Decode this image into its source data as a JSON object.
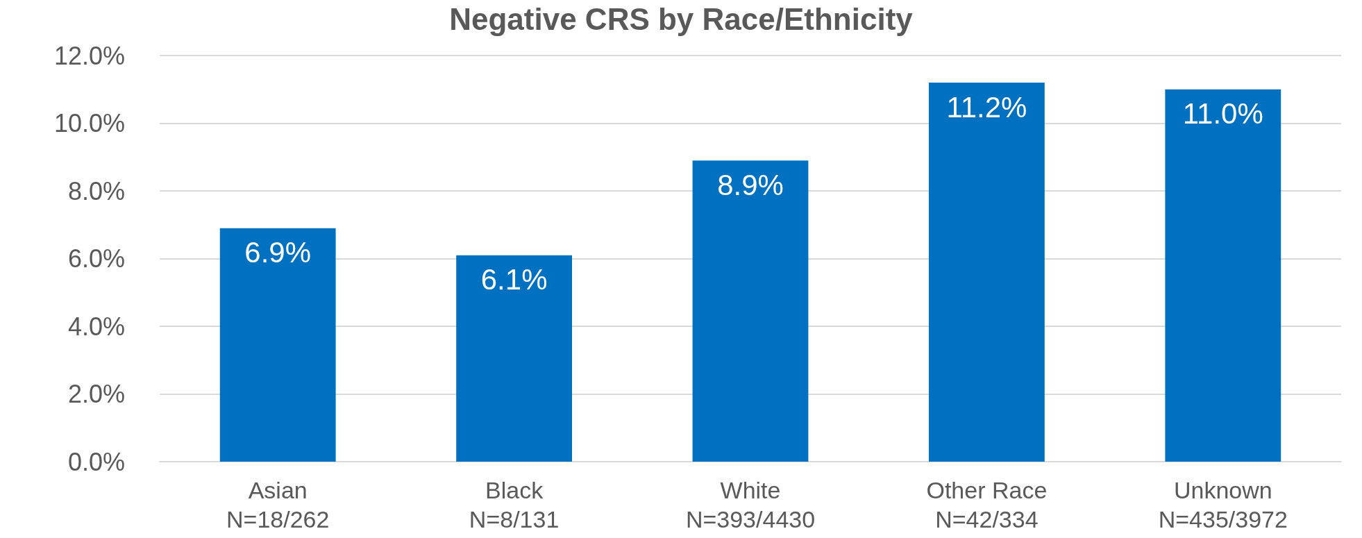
{
  "chart_data": {
    "type": "bar",
    "title": "Negative CRS by Race/Ethnicity",
    "categories": [
      "Asian\nN=18/262",
      "Black\nN=8/131",
      "White\nN=393/4430",
      "Other Race\nN=42/334",
      "Unknown\nN=435/3972"
    ],
    "values": [
      6.9,
      6.1,
      8.9,
      11.2,
      11.0
    ],
    "color": "#0070c0",
    "ylim": [
      0,
      12
    ],
    "yticks": [
      {
        "value": 0,
        "label": "0.0%"
      },
      {
        "value": 2,
        "label": "2.0%"
      },
      {
        "value": 4,
        "label": "4.0%"
      },
      {
        "value": 6,
        "label": "6.0%"
      },
      {
        "value": 8,
        "label": "8.0%"
      },
      {
        "value": 10,
        "label": "10.0%"
      },
      {
        "value": 12,
        "label": "12.0%"
      }
    ],
    "value_labels": [
      "6.9%",
      "6.1%",
      "8.9%",
      "11.2%",
      "11.0%"
    ],
    "grid": "y"
  }
}
